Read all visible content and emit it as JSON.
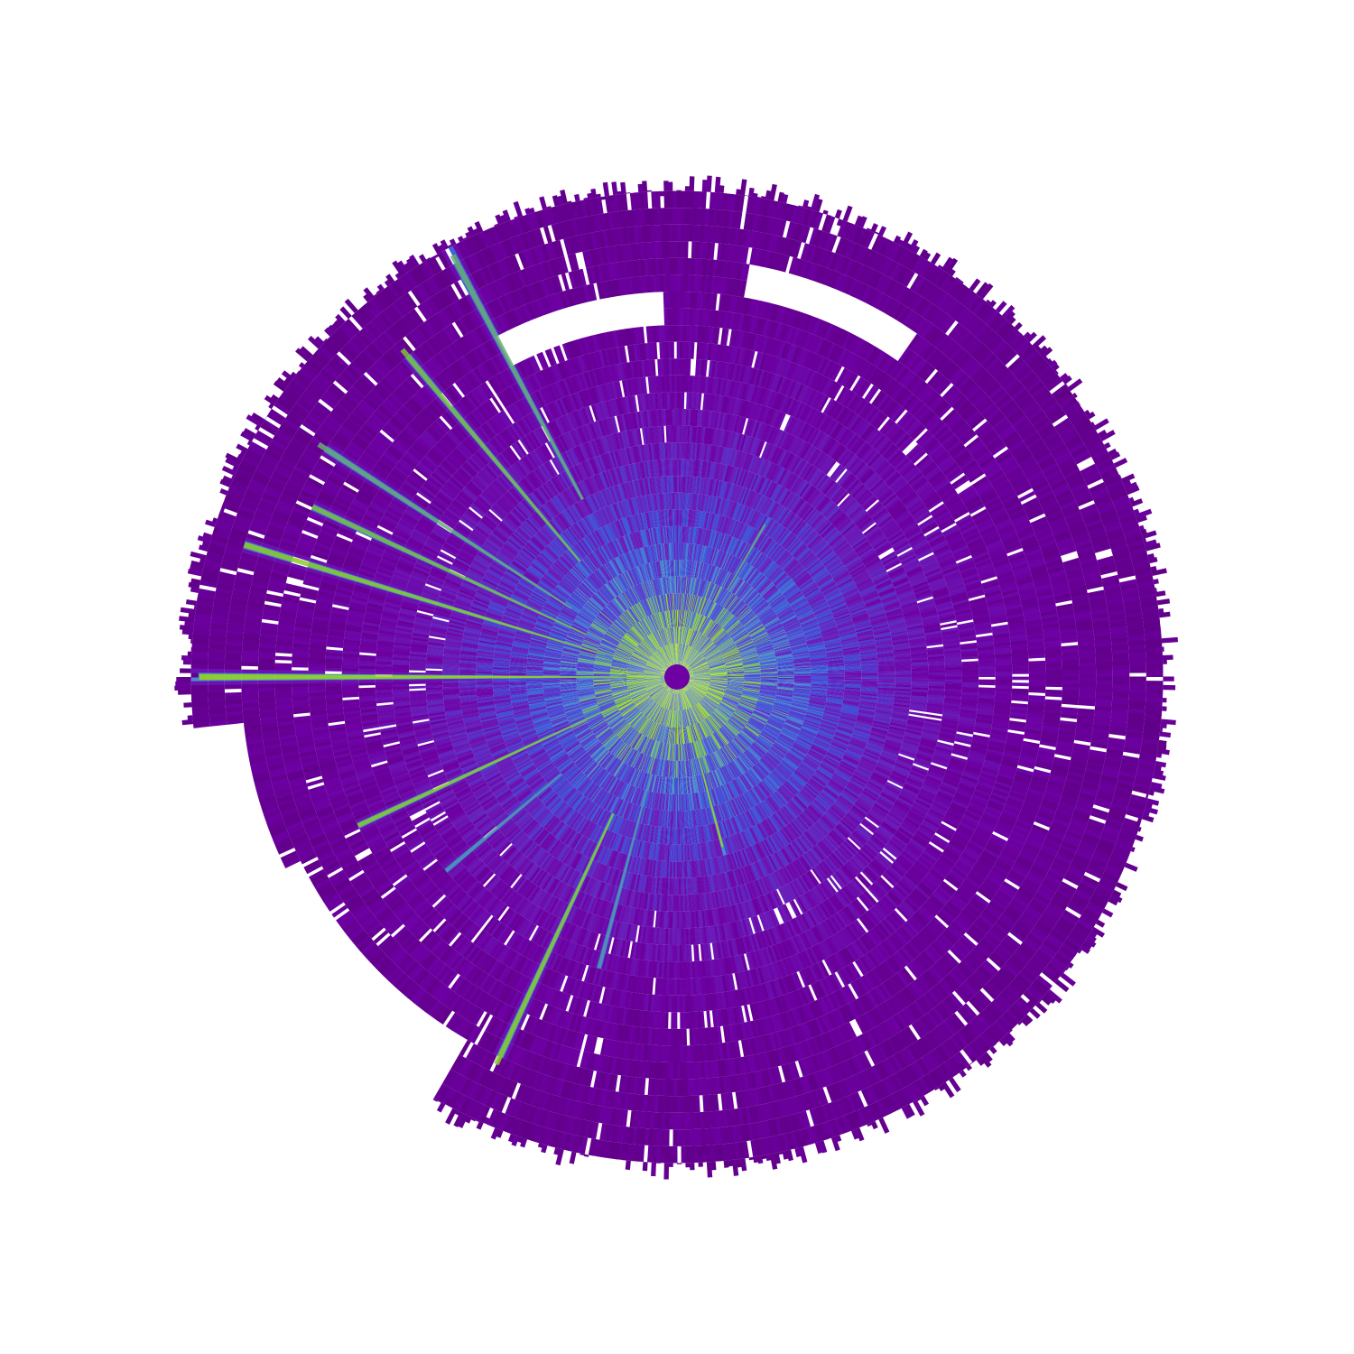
{
  "chart_data": {
    "type": "heatmap",
    "projection": "polar",
    "axes_visible": false,
    "grid": false,
    "legend": "none",
    "title": "",
    "xlabel": "",
    "ylabel": "",
    "angular_range_deg": [
      0,
      360
    ],
    "radial_range": [
      0,
      1
    ],
    "angular_bins": 720,
    "radial_bins": 30,
    "value_range": [
      0,
      1
    ],
    "colormap": [
      "#5a007a",
      "#6d00a3",
      "#6a1bb8",
      "#4f3ccf",
      "#3b5ad8",
      "#4a8ad0",
      "#7fc23a",
      "#a8e600"
    ],
    "radial_profile": {
      "r": [
        0.0,
        0.1,
        0.2,
        0.3,
        0.4,
        0.5,
        0.6,
        0.7,
        0.8,
        0.9,
        1.0
      ],
      "mean": [
        0.9,
        0.72,
        0.55,
        0.42,
        0.3,
        0.22,
        0.16,
        0.12,
        0.1,
        0.09,
        0.08
      ]
    },
    "bright_rays": [
      {
        "angle_deg": 180,
        "r_start": 0.05,
        "r_end": 0.95,
        "value": 0.95
      },
      {
        "angle_deg": 163,
        "r_start": 0.15,
        "r_end": 0.9,
        "value": 0.9
      },
      {
        "angle_deg": 155,
        "r_start": 0.2,
        "r_end": 0.8,
        "value": 0.85
      },
      {
        "angle_deg": 147,
        "r_start": 0.25,
        "r_end": 0.85,
        "value": 0.8
      },
      {
        "angle_deg": 130,
        "r_start": 0.3,
        "r_end": 0.85,
        "value": 0.85
      },
      {
        "angle_deg": 118,
        "r_start": 0.4,
        "r_end": 0.95,
        "value": 0.8
      },
      {
        "angle_deg": 205,
        "r_start": 0.1,
        "r_end": 0.7,
        "value": 0.9
      },
      {
        "angle_deg": 220,
        "r_start": 0.3,
        "r_end": 0.6,
        "value": 0.75
      },
      {
        "angle_deg": 245,
        "r_start": 0.3,
        "r_end": 0.85,
        "value": 0.9
      },
      {
        "angle_deg": 255,
        "r_start": 0.2,
        "r_end": 0.6,
        "value": 0.75
      },
      {
        "angle_deg": 285,
        "r_start": 0.02,
        "r_end": 0.35,
        "value": 0.95
      },
      {
        "angle_deg": 60,
        "r_start": 0.2,
        "r_end": 0.35,
        "value": 0.8
      }
    ],
    "missing_regions": [
      {
        "angle_range_deg": [
          92,
          118
        ],
        "r_range": [
          0.7,
          0.76
        ]
      },
      {
        "angle_range_deg": [
          55,
          80
        ],
        "r_range": [
          0.76,
          0.82
        ]
      },
      {
        "angle_range_deg": [
          186,
          206
        ],
        "r_range": [
          0.88,
          1.0
        ]
      },
      {
        "angle_range_deg": [
          206,
          240
        ],
        "r_range": [
          0.82,
          1.0
        ]
      }
    ]
  }
}
